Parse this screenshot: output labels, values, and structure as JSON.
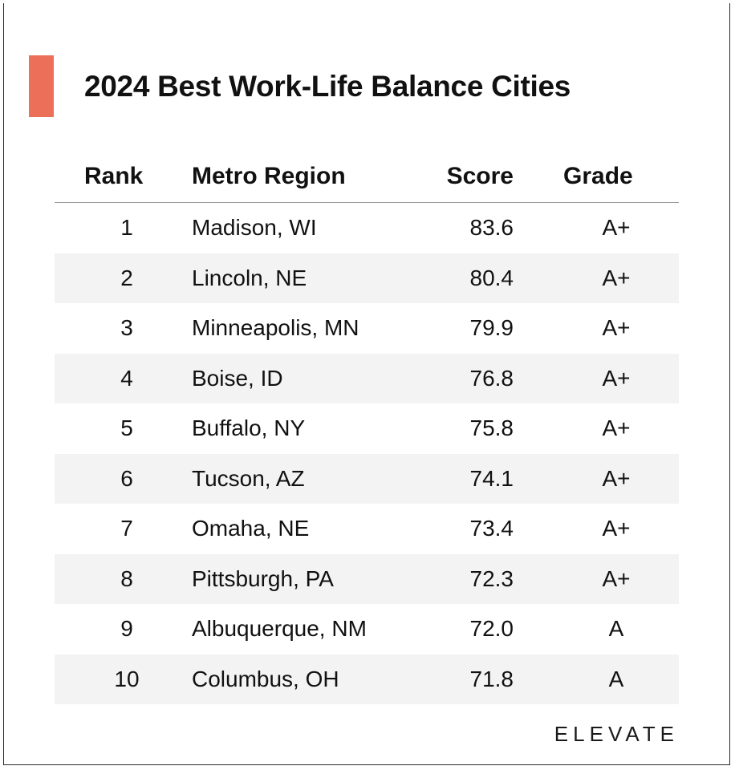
{
  "title": "2024 Best Work-Life Balance Cities",
  "brand": "ELEVATE",
  "colors": {
    "accent": "#ec6f5a",
    "row_shade": "#f3f3f3",
    "text": "#111111"
  },
  "chart_data": {
    "type": "table",
    "title": "2024 Best Work-Life Balance Cities",
    "columns": [
      "Rank",
      "Metro Region",
      "Score",
      "Grade"
    ],
    "rows": [
      {
        "rank": "1",
        "region": "Madison, WI",
        "score": "83.6",
        "grade": "A+"
      },
      {
        "rank": "2",
        "region": "Lincoln, NE",
        "score": "80.4",
        "grade": "A+"
      },
      {
        "rank": "3",
        "region": "Minneapolis, MN",
        "score": "79.9",
        "grade": "A+"
      },
      {
        "rank": "4",
        "region": "Boise, ID",
        "score": "76.8",
        "grade": "A+"
      },
      {
        "rank": "5",
        "region": "Buffalo, NY",
        "score": "75.8",
        "grade": "A+"
      },
      {
        "rank": "6",
        "region": "Tucson, AZ",
        "score": "74.1",
        "grade": "A+"
      },
      {
        "rank": "7",
        "region": "Omaha, NE",
        "score": "73.4",
        "grade": "A+"
      },
      {
        "rank": "8",
        "region": "Pittsburgh, PA",
        "score": "72.3",
        "grade": "A+"
      },
      {
        "rank": "9",
        "region": "Albuquerque, NM",
        "score": "72.0",
        "grade": "A"
      },
      {
        "rank": "10",
        "region": "Columbus, OH",
        "score": "71.8",
        "grade": "A"
      }
    ]
  }
}
